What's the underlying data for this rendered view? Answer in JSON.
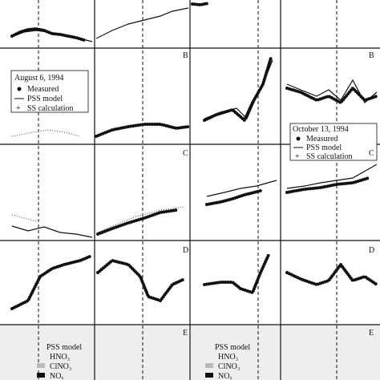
{
  "panel_labels": [
    "B",
    "B",
    "C",
    "C",
    "D",
    "D",
    "E",
    "E"
  ],
  "legend_aug": {
    "date": "August 6, 1994",
    "items": [
      "Measured",
      "PSS model",
      "SS calculation"
    ]
  },
  "legend_oct": {
    "date": "October 13, 1994",
    "items": [
      "Measured",
      "PSS model",
      "SS calculation"
    ]
  },
  "legend_e": [
    {
      "title": "PSS model",
      "items": [
        "HNO₃",
        "ClNO₃",
        "NOₓ"
      ]
    },
    {
      "title": "PSS model",
      "items": [
        "HNO₃",
        "ClNO₃",
        "NOₓ"
      ]
    }
  ]
}
